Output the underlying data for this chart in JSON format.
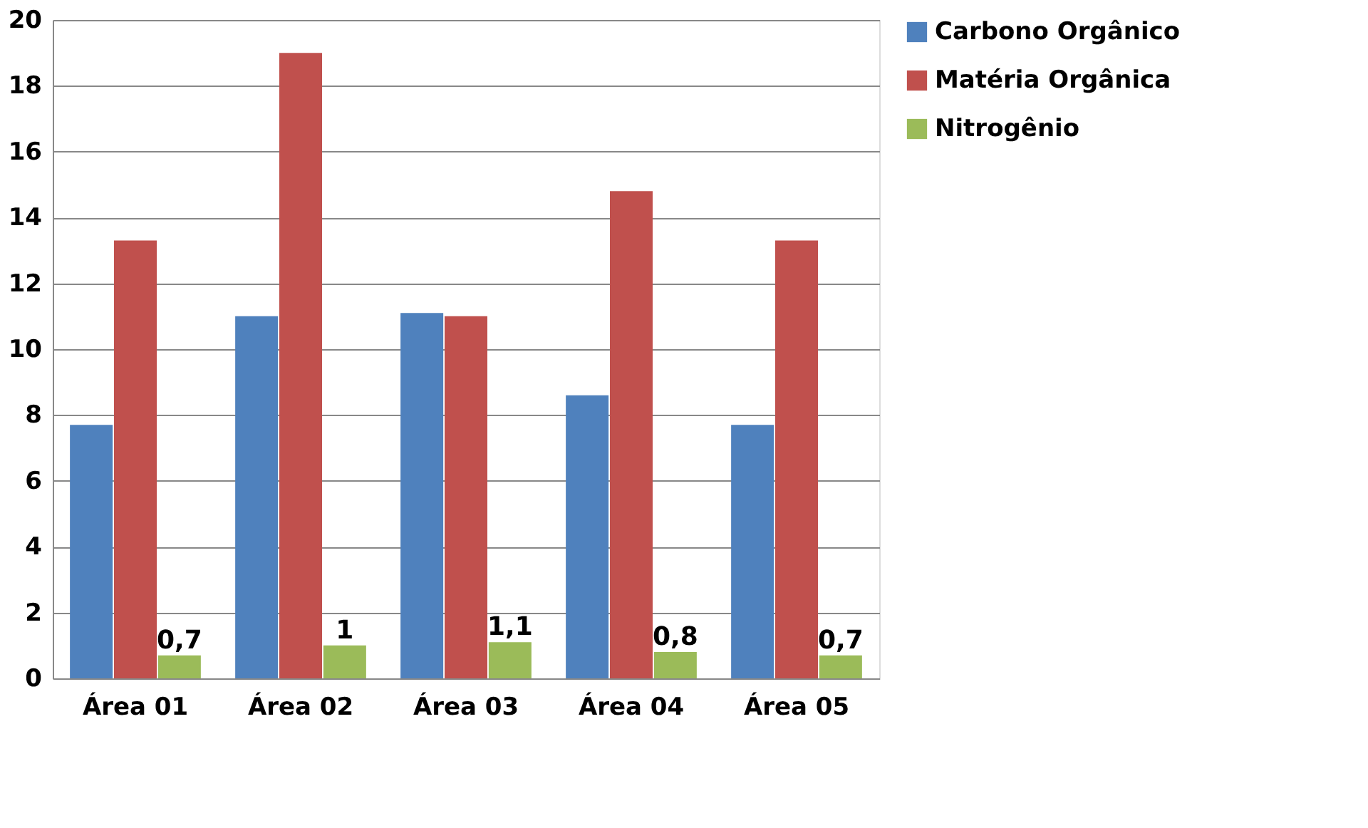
{
  "chart_data": {
    "type": "bar",
    "categories": [
      "Área 01",
      "Área 02",
      "Área 03",
      "Área 04",
      "Área 05"
    ],
    "series": [
      {
        "name": "Carbono Orgânico",
        "color": "#4f81bd",
        "values": [
          7.7,
          11.0,
          11.1,
          8.6,
          7.7
        ]
      },
      {
        "name": "Matéria Orgânica",
        "color": "#c0504d",
        "values": [
          13.3,
          19.0,
          11.0,
          14.8,
          13.3
        ]
      },
      {
        "name": "Nitrogênio",
        "color": "#9bbb59",
        "values": [
          0.7,
          1,
          1.1,
          0.8,
          0.7
        ],
        "value_labels": [
          "0,7",
          "1",
          "1,1",
          "0,8",
          "0,7"
        ]
      }
    ],
    "ylim": [
      0,
      20
    ],
    "yticks": [
      0,
      2,
      4,
      6,
      8,
      10,
      12,
      14,
      16,
      18,
      20
    ],
    "grid": "y",
    "legend": "right"
  }
}
